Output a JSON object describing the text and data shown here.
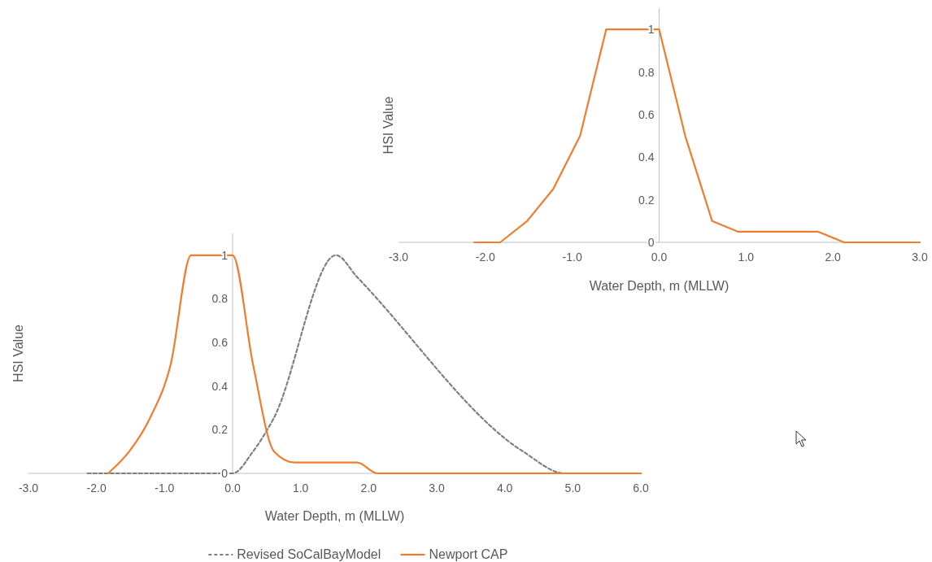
{
  "chart_data": [
    {
      "type": "line",
      "xlabel": "Water Depth, m (MLLW)",
      "ylabel": "HSI Value",
      "xlim": [
        -3,
        3
      ],
      "ylim": [
        0,
        1.1
      ],
      "xticks": [
        {
          "value": -3,
          "label": "-3.0"
        },
        {
          "value": -2,
          "label": "-2.0"
        },
        {
          "value": -1,
          "label": "-1.0"
        },
        {
          "value": 0,
          "label": "0.0"
        },
        {
          "value": 1,
          "label": "1.0"
        },
        {
          "value": 2,
          "label": "2.0"
        },
        {
          "value": 3,
          "label": "3.0"
        }
      ],
      "yticks": [
        0,
        0.2,
        0.4,
        0.6,
        0.8,
        1
      ],
      "grid": false,
      "marker": "none",
      "legend": false,
      "series": [
        {
          "color": "#ed7d31",
          "line_style": "solid",
          "x": [
            -2.13,
            -1.83,
            -1.52,
            -1.22,
            -0.91,
            -0.61,
            0,
            0.3,
            0.61,
            0.91,
            1.83,
            2.13,
            3
          ],
          "values": [
            0,
            0,
            0.1,
            0.25,
            0.5,
            1,
            1,
            0.5,
            0.1,
            0.05,
            0.05,
            0,
            0
          ]
        }
      ]
    },
    {
      "type": "line",
      "xlabel": "Water Depth, m (MLLW)",
      "ylabel": "HSI Value",
      "xlim": [
        -3,
        6
      ],
      "ylim": [
        0,
        1.1
      ],
      "xticks": [
        {
          "value": -3,
          "label": "-3.0"
        },
        {
          "value": -2,
          "label": "-2.0"
        },
        {
          "value": -1,
          "label": "-1.0"
        },
        {
          "value": 0,
          "label": "0.0"
        },
        {
          "value": 1,
          "label": "1.0"
        },
        {
          "value": 2,
          "label": "2.0"
        },
        {
          "value": 3,
          "label": "3.0"
        },
        {
          "value": 4,
          "label": "4.0"
        },
        {
          "value": 5,
          "label": "5.0"
        },
        {
          "value": 6,
          "label": "6.0"
        }
      ],
      "yticks": [
        0,
        0.2,
        0.4,
        0.6,
        0.8,
        1
      ],
      "grid": false,
      "marker": "none",
      "legend": "bottom",
      "series": [
        {
          "name": "Revised SoCalBayModel",
          "color": "#7f7f7f",
          "line_style": "dashed",
          "x": [
            -2.13,
            0,
            0.3,
            0.6,
            1.52,
            1.83,
            4.27,
            4.88,
            6
          ],
          "values": [
            0,
            0,
            0.1,
            0.25,
            1,
            0.9,
            0.1,
            0,
            0
          ]
        },
        {
          "name": "Newport CAP",
          "color": "#ed7d31",
          "line_style": "solid",
          "x": [
            -1.83,
            -1.52,
            -1.22,
            -0.91,
            -0.61,
            -0.3,
            0,
            0.3,
            0.61,
            0.91,
            1.83,
            2.13,
            6
          ],
          "values": [
            0,
            0.1,
            0.25,
            0.5,
            1,
            1,
            1,
            0.5,
            0.1,
            0.05,
            0.05,
            0,
            0
          ]
        }
      ]
    }
  ]
}
